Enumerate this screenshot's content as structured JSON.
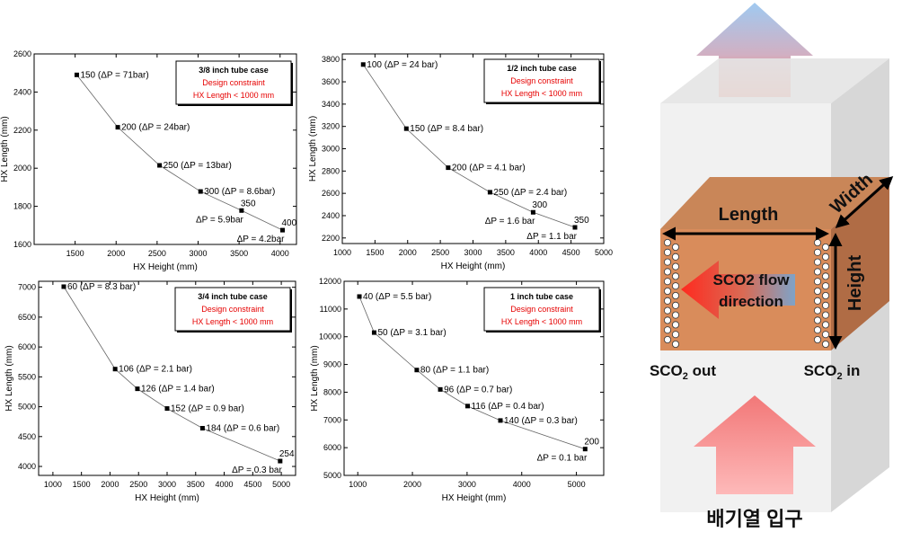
{
  "chart_data": [
    {
      "type": "line",
      "xlabel": "HX Height (mm)",
      "ylabel": "HX Length (mm)",
      "xlim": [
        1000,
        4200
      ],
      "ylim": [
        1600,
        2600
      ],
      "xticks": [
        1500,
        2000,
        2500,
        3000,
        3500,
        4000
      ],
      "yticks": [
        1600,
        1800,
        2000,
        2200,
        2400,
        2600
      ],
      "legend": {
        "title": "3/8 inch tube case",
        "line1": "Design constraint",
        "line2": "HX Length < 1000 mm"
      },
      "points": [
        {
          "x": 1520,
          "y": 2490,
          "label": "150 (ΔP = 71bar)",
          "lpos": "right"
        },
        {
          "x": 2020,
          "y": 2215,
          "label": "200 (ΔP = 24bar)",
          "lpos": "right"
        },
        {
          "x": 2530,
          "y": 2015,
          "label": "250 (ΔP = 13bar)",
          "lpos": "right"
        },
        {
          "x": 3030,
          "y": 1878,
          "label": "300 (ΔP = 8.6bar)",
          "lpos": "right"
        },
        {
          "x": 3530,
          "y": 1778,
          "label": "350",
          "label2": "ΔP = 5.9bar",
          "lpos": "split"
        },
        {
          "x": 4030,
          "y": 1675,
          "label": "400",
          "label2": "ΔP = 4.2bar",
          "lpos": "split"
        }
      ]
    },
    {
      "type": "line",
      "xlabel": "HX Height (mm)",
      "ylabel": "HX Length (mm)",
      "xlim": [
        1000,
        5000
      ],
      "ylim": [
        2150,
        3850
      ],
      "xticks": [
        1000,
        1500,
        2000,
        2500,
        3000,
        3500,
        4000,
        4500,
        5000
      ],
      "yticks": [
        2200,
        2400,
        2600,
        2800,
        3000,
        3200,
        3400,
        3600,
        3800
      ],
      "legend": {
        "title": "1/2 inch tube case",
        "line1": "Design constraint",
        "line2": "HX Length < 1000 mm"
      },
      "points": [
        {
          "x": 1320,
          "y": 3755,
          "label": "100 (ΔP = 24 bar)",
          "lpos": "right"
        },
        {
          "x": 1980,
          "y": 3180,
          "label": "150 (ΔP = 8.4 bar)",
          "lpos": "right"
        },
        {
          "x": 2620,
          "y": 2830,
          "label": "200 (ΔP = 4.1 bar)",
          "lpos": "right"
        },
        {
          "x": 3260,
          "y": 2610,
          "label": "250 (ΔP = 2.4 bar)",
          "lpos": "right"
        },
        {
          "x": 3920,
          "y": 2430,
          "label": "300",
          "label2": "ΔP = 1.6 bar",
          "lpos": "split"
        },
        {
          "x": 4560,
          "y": 2295,
          "label": "350",
          "label2": "ΔP = 1.1 bar",
          "lpos": "split"
        }
      ]
    },
    {
      "type": "line",
      "xlabel": "HX Height (mm)",
      "ylabel": "HX Length (mm)",
      "xlim": [
        750,
        5250
      ],
      "ylim": [
        3850,
        7100
      ],
      "xticks": [
        1000,
        1500,
        2000,
        2500,
        3000,
        3500,
        4000,
        4500,
        5000
      ],
      "yticks": [
        4000,
        4500,
        5000,
        5500,
        6000,
        6500,
        7000
      ],
      "legend": {
        "title": "3/4 inch tube case",
        "line1": "Design constraint",
        "line2": "HX Length < 1000 mm"
      },
      "points": [
        {
          "x": 1190,
          "y": 7010,
          "label": "60 (ΔP = 8.3 bar)",
          "lpos": "right"
        },
        {
          "x": 2090,
          "y": 5630,
          "label": "106 (ΔP = 2.1 bar)",
          "lpos": "right"
        },
        {
          "x": 2480,
          "y": 5300,
          "label": "126 (ΔP = 1.4 bar)",
          "lpos": "right"
        },
        {
          "x": 3000,
          "y": 4970,
          "label": "152 (ΔP = 0.9 bar)",
          "lpos": "right"
        },
        {
          "x": 3620,
          "y": 4640,
          "label": "184 (ΔP = 0.6 bar)",
          "lpos": "right"
        },
        {
          "x": 4980,
          "y": 4090,
          "label": "254",
          "label2": "ΔP = 0.3 bar",
          "lpos": "split"
        }
      ]
    },
    {
      "type": "line",
      "xlabel": "HX Height (mm)",
      "ylabel": "HX Length (mm)",
      "xlim": [
        750,
        5500
      ],
      "ylim": [
        5000,
        12000
      ],
      "xticks": [
        1000,
        2000,
        3000,
        4000,
        5000
      ],
      "yticks": [
        5000,
        6000,
        7000,
        8000,
        9000,
        10000,
        11000,
        12000
      ],
      "legend": {
        "title": "1 inch tube case",
        "line1": "Design constraint",
        "line2": "HX Length < 1000 mm"
      },
      "points": [
        {
          "x": 1030,
          "y": 11450,
          "label": "40 (ΔP = 5.5 bar)",
          "lpos": "right"
        },
        {
          "x": 1300,
          "y": 10150,
          "label": "50 (ΔP = 3.1 bar)",
          "lpos": "right"
        },
        {
          "x": 2080,
          "y": 8800,
          "label": "80 (ΔP = 1.1 bar)",
          "lpos": "right"
        },
        {
          "x": 2510,
          "y": 8100,
          "label": "96 (ΔP = 0.7 bar)",
          "lpos": "right"
        },
        {
          "x": 3010,
          "y": 7500,
          "label": "116 (ΔP = 0.4 bar)",
          "lpos": "right"
        },
        {
          "x": 3610,
          "y": 6980,
          "label": "140 (ΔP = 0.3 bar)",
          "lpos": "right"
        },
        {
          "x": 5160,
          "y": 5950,
          "label": "200",
          "label2": "ΔP = 0.1 bar",
          "lpos": "split"
        }
      ]
    }
  ],
  "diagram": {
    "width_label": "Width",
    "length_label": "Length",
    "height_label": "Height",
    "flow_label_1": "SCO2 flow",
    "flow_label_2": "direction",
    "sco2_out_main": "SCO",
    "sco2_out_sub": "2",
    "sco2_out_suffix": " out",
    "sco2_in_main": "SCO",
    "sco2_in_sub": "2",
    "sco2_in_suffix": " in",
    "exhaust_inlet": "배기열 입구",
    "colors": {
      "heat_in": "#f47a7a",
      "heat_out_top": "#8fc0ee",
      "heat_out_bottom": "#ff5a3a",
      "hx_front": "#d98c5b",
      "hx_top": "#c98658",
      "hx_side": "#b06c45",
      "box_front": "#efefef",
      "box_side": "#d6d6d6",
      "flow_arrow": "#ff3b2f",
      "flow_tail": "#7ea3c8"
    }
  }
}
